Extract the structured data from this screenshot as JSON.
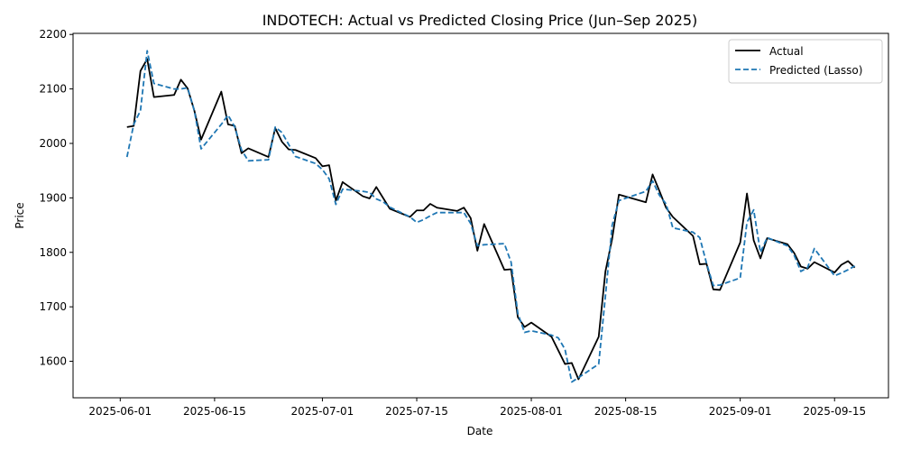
{
  "chart_data": {
    "type": "line",
    "title": "INDOTECH: Actual vs Predicted Closing Price (Jun–Sep 2025)",
    "xlabel": "Date",
    "ylabel": "Price",
    "xlim": [
      "2025-05-25",
      "2025-09-23"
    ],
    "ylim": [
      1533,
      2202
    ],
    "grid": false,
    "legend_position": "top-right",
    "x_tick_labels": [
      "2025-06-01",
      "2025-06-15",
      "2025-07-01",
      "2025-07-15",
      "2025-08-01",
      "2025-08-15",
      "2025-09-01",
      "2025-09-15"
    ],
    "y_tick_labels": [
      "1600",
      "1700",
      "1800",
      "1900",
      "2000",
      "2100",
      "2200"
    ],
    "colors": {
      "actual": "#000000",
      "predicted": "#1f77b4"
    },
    "series": [
      {
        "name": "Actual",
        "line_style": "solid",
        "x": [
          "2025-06-02",
          "2025-06-03",
          "2025-06-04",
          "2025-06-05",
          "2025-06-06",
          "2025-06-09",
          "2025-06-10",
          "2025-06-11",
          "2025-06-12",
          "2025-06-13",
          "2025-06-16",
          "2025-06-17",
          "2025-06-18",
          "2025-06-19",
          "2025-06-20",
          "2025-06-23",
          "2025-06-24",
          "2025-06-25",
          "2025-06-26",
          "2025-06-27",
          "2025-06-30",
          "2025-07-01",
          "2025-07-02",
          "2025-07-03",
          "2025-07-04",
          "2025-07-07",
          "2025-07-08",
          "2025-07-09",
          "2025-07-10",
          "2025-07-11",
          "2025-07-14",
          "2025-07-15",
          "2025-07-16",
          "2025-07-17",
          "2025-07-18",
          "2025-07-21",
          "2025-07-22",
          "2025-07-23",
          "2025-07-24",
          "2025-07-25",
          "2025-07-28",
          "2025-07-29",
          "2025-07-30",
          "2025-07-31",
          "2025-08-01",
          "2025-08-04",
          "2025-08-05",
          "2025-08-06",
          "2025-08-07",
          "2025-08-08",
          "2025-08-11",
          "2025-08-12",
          "2025-08-13",
          "2025-08-14",
          "2025-08-18",
          "2025-08-19",
          "2025-08-20",
          "2025-08-21",
          "2025-08-22",
          "2025-08-25",
          "2025-08-26",
          "2025-08-27",
          "2025-08-28",
          "2025-08-29",
          "2025-09-01",
          "2025-09-02",
          "2025-09-03",
          "2025-09-04",
          "2025-09-05",
          "2025-09-08",
          "2025-09-09",
          "2025-09-10",
          "2025-09-11",
          "2025-09-12",
          "2025-09-15",
          "2025-09-16",
          "2025-09-17",
          "2025-09-18"
        ],
        "values": [
          2030,
          2032,
          2133,
          2155,
          2085,
          2089,
          2117,
          2101,
          2060,
          2007,
          2095,
          2035,
          2032,
          1982,
          1991,
          1975,
          2028,
          2003,
          1989,
          1988,
          1973,
          1958,
          1960,
          1895,
          1929,
          1903,
          1899,
          1920,
          1900,
          1880,
          1865,
          1877,
          1877,
          1889,
          1882,
          1876,
          1882,
          1863,
          1803,
          1852,
          1768,
          1769,
          1681,
          1663,
          1671,
          1645,
          1620,
          1595,
          1597,
          1567,
          1645,
          1765,
          1825,
          1906,
          1892,
          1943,
          1913,
          1882,
          1865,
          1830,
          1778,
          1779,
          1732,
          1731,
          1818,
          1908,
          1822,
          1789,
          1826,
          1815,
          1799,
          1774,
          1770,
          1782,
          1763,
          1777,
          1784,
          1772
        ]
      },
      {
        "name": "Predicted (Lasso)",
        "line_style": "dashed",
        "x": [
          "2025-06-02",
          "2025-06-03",
          "2025-06-04",
          "2025-06-05",
          "2025-06-06",
          "2025-06-09",
          "2025-06-10",
          "2025-06-11",
          "2025-06-12",
          "2025-06-13",
          "2025-06-16",
          "2025-06-17",
          "2025-06-18",
          "2025-06-19",
          "2025-06-20",
          "2025-06-23",
          "2025-06-24",
          "2025-06-25",
          "2025-06-26",
          "2025-06-27",
          "2025-06-30",
          "2025-07-01",
          "2025-07-02",
          "2025-07-03",
          "2025-07-04",
          "2025-07-07",
          "2025-07-08",
          "2025-07-09",
          "2025-07-10",
          "2025-07-11",
          "2025-07-14",
          "2025-07-15",
          "2025-07-16",
          "2025-07-17",
          "2025-07-18",
          "2025-07-21",
          "2025-07-22",
          "2025-07-23",
          "2025-07-24",
          "2025-07-25",
          "2025-07-28",
          "2025-07-29",
          "2025-07-30",
          "2025-07-31",
          "2025-08-01",
          "2025-08-04",
          "2025-08-05",
          "2025-08-06",
          "2025-08-07",
          "2025-08-08",
          "2025-08-11",
          "2025-08-12",
          "2025-08-13",
          "2025-08-14",
          "2025-08-18",
          "2025-08-19",
          "2025-08-20",
          "2025-08-21",
          "2025-08-22",
          "2025-08-25",
          "2025-08-26",
          "2025-08-27",
          "2025-08-28",
          "2025-08-29",
          "2025-09-01",
          "2025-09-02",
          "2025-09-03",
          "2025-09-04",
          "2025-09-05",
          "2025-09-08",
          "2025-09-09",
          "2025-09-10",
          "2025-09-11",
          "2025-09-12",
          "2025-09-15",
          "2025-09-16",
          "2025-09-17",
          "2025-09-18"
        ],
        "values": [
          1975,
          2035,
          2060,
          2170,
          2110,
          2100,
          2100,
          2102,
          2060,
          1990,
          2035,
          2052,
          2030,
          1988,
          1968,
          1970,
          2030,
          2020,
          1998,
          1976,
          1963,
          1952,
          1935,
          1888,
          1916,
          1912,
          1910,
          1898,
          1893,
          1883,
          1865,
          1855,
          1860,
          1867,
          1873,
          1873,
          1873,
          1853,
          1812,
          1814,
          1816,
          1782,
          1688,
          1653,
          1656,
          1648,
          1643,
          1622,
          1562,
          1570,
          1595,
          1720,
          1850,
          1895,
          1912,
          1931,
          1905,
          1889,
          1845,
          1837,
          1827,
          1780,
          1739,
          1740,
          1753,
          1855,
          1878,
          1800,
          1827,
          1812,
          1795,
          1765,
          1772,
          1807,
          1757,
          1762,
          1768,
          1775
        ]
      }
    ]
  }
}
